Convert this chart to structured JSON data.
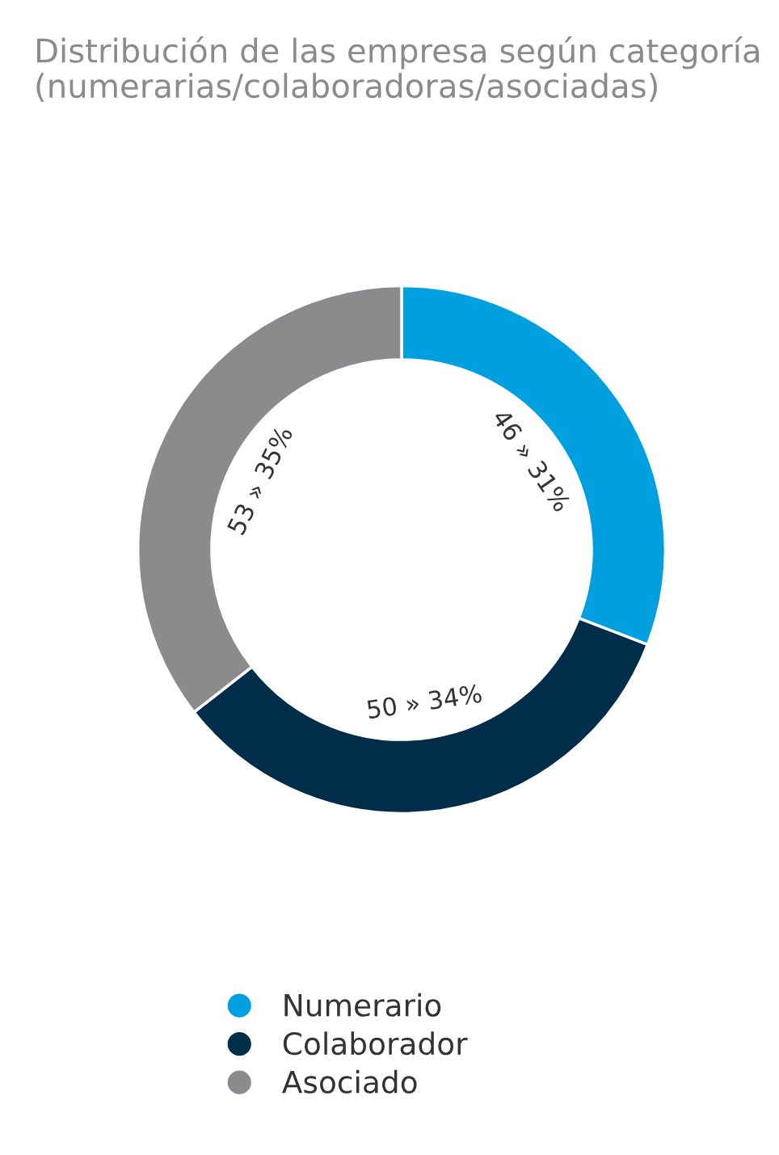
{
  "chart_data": {
    "type": "donut",
    "title": "Distribución de las empresa según categoría (numerarias/colaboradoras/asociadas)",
    "categories": [
      "Numerario",
      "Colaborador",
      "Asociado"
    ],
    "values": [
      46,
      50,
      53
    ],
    "colors": [
      "#009fdf",
      "#002e4a",
      "#8a8b8d"
    ],
    "value_labels": [
      "46 » 31%",
      "50 » 34%",
      "53 » 35%"
    ],
    "legend": "bottom"
  }
}
